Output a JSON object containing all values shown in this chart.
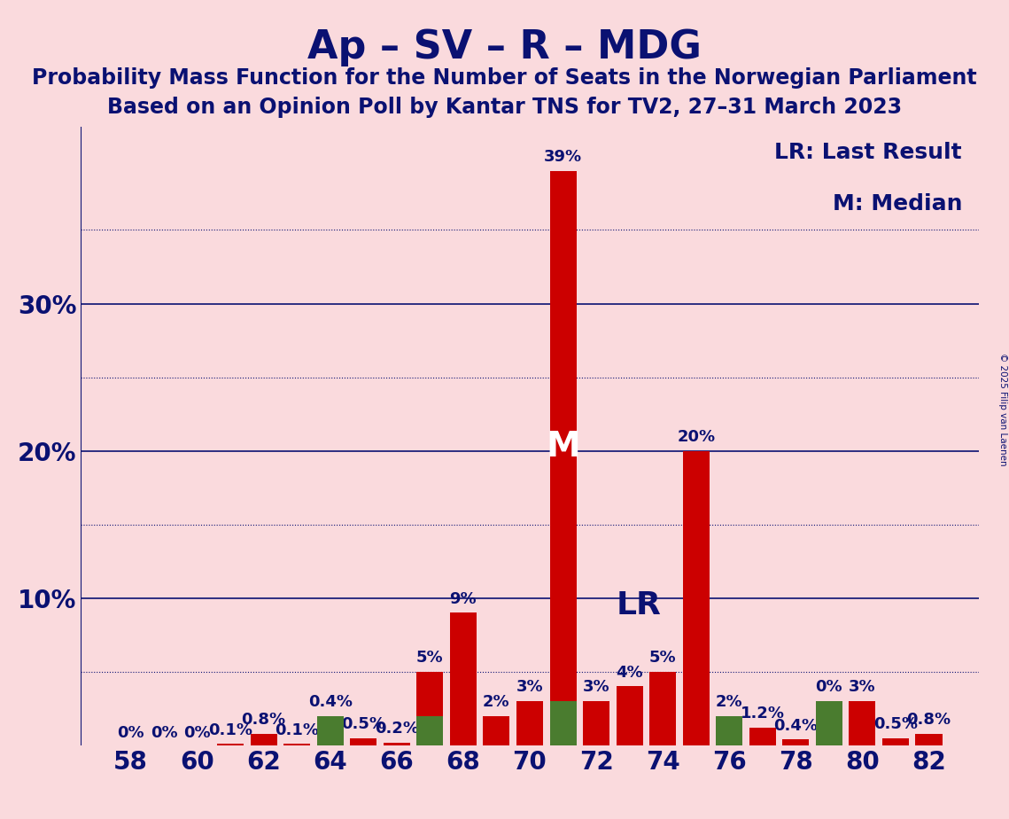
{
  "title": "Ap – SV – R – MDG",
  "subtitle1": "Probability Mass Function for the Number of Seats in the Norwegian Parliament",
  "subtitle2": "Based on an Opinion Poll by Kantar TNS for TV2, 27–31 March 2023",
  "copyright": "© 2025 Filip van Laenen",
  "legend_lr": "LR: Last Result",
  "legend_m": "M: Median",
  "background_color": "#FADADD",
  "bar_color_red": "#CC0000",
  "bar_color_green": "#4A7C2F",
  "text_color": "#0A1172",
  "seats": [
    58,
    59,
    60,
    61,
    62,
    63,
    64,
    65,
    66,
    67,
    68,
    69,
    70,
    71,
    72,
    73,
    74,
    75,
    76,
    77,
    78,
    79,
    80,
    81,
    82
  ],
  "pmf_values": [
    0.0,
    0.0,
    0.0,
    0.1,
    0.8,
    0.1,
    0.4,
    0.5,
    0.2,
    5.0,
    9.0,
    2.0,
    3.0,
    39.0,
    3.0,
    4.0,
    5.0,
    20.0,
    2.0,
    1.2,
    0.4,
    0.0,
    3.0,
    0.5,
    0.8
  ],
  "lr_values": [
    0.0,
    0.0,
    0.0,
    0.0,
    0.0,
    0.0,
    2.0,
    0.0,
    0.0,
    2.0,
    0.0,
    0.0,
    0.0,
    3.0,
    0.0,
    0.0,
    0.0,
    0.0,
    2.0,
    0.0,
    0.0,
    3.0,
    0.0,
    0.0,
    0.0
  ],
  "median_seat": 71,
  "lr_label_seat": 72,
  "ylim": [
    0,
    42
  ],
  "bar_width": 0.8,
  "title_fontsize": 32,
  "subtitle_fontsize": 17,
  "tick_fontsize": 20,
  "annot_fontsize": 13,
  "legend_fontsize": 18,
  "label_color_white": "#FFFFFF",
  "label_color_dark": "#0A1172"
}
